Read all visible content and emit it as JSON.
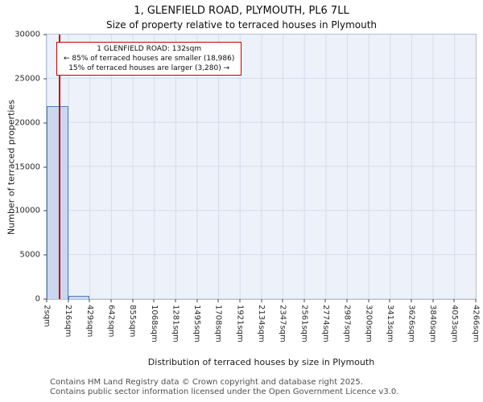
{
  "chart_data": {
    "type": "bar",
    "title": "1, GLENFIELD ROAD, PLYMOUTH, PL6 7LL",
    "subtitle": "Size of property relative to terraced houses in Plymouth",
    "xlabel": "Distribution of terraced houses by size in Plymouth",
    "ylabel": "Number of terraced properties",
    "categories": [
      "2sqm",
      "216sqm",
      "429sqm",
      "642sqm",
      "855sqm",
      "1068sqm",
      "1281sqm",
      "1495sqm",
      "1708sqm",
      "1921sqm",
      "2134sqm",
      "2347sqm",
      "2561sqm",
      "2774sqm",
      "2987sqm",
      "3200sqm",
      "3413sqm",
      "3626sqm",
      "3840sqm",
      "4053sqm",
      "4266sqm"
    ],
    "values": [
      21900,
      350,
      0,
      0,
      0,
      0,
      0,
      0,
      0,
      0,
      0,
      0,
      0,
      0,
      0,
      0,
      0,
      0,
      0,
      0
    ],
    "ylim": [
      0,
      30000
    ],
    "yticks": [
      0,
      5000,
      10000,
      15000,
      20000,
      25000,
      30000
    ],
    "grid": true,
    "legend": "none",
    "marker": {
      "label": "1 GLENFIELD ROAD",
      "value": "132sqm",
      "x_fraction": 0.0305
    },
    "annotation": {
      "line1": "1 GLENFIELD ROAD: 132sqm",
      "line2": "← 85% of terraced houses are smaller (18,986)",
      "line3": "15% of terraced houses are larger (3,280) →"
    },
    "colors": {
      "bar_fill": "#c9d8ef",
      "bar_edge": "#4f7db8",
      "marker_line": "#cc0000",
      "grid": "#d4dcec",
      "plot_bg": "#edf1fa",
      "frame": "#b7c0d3"
    }
  },
  "footer": {
    "line1": "Contains HM Land Registry data © Crown copyright and database right 2025.",
    "line2": "Contains public sector information licensed under the Open Government Licence v3.0."
  }
}
